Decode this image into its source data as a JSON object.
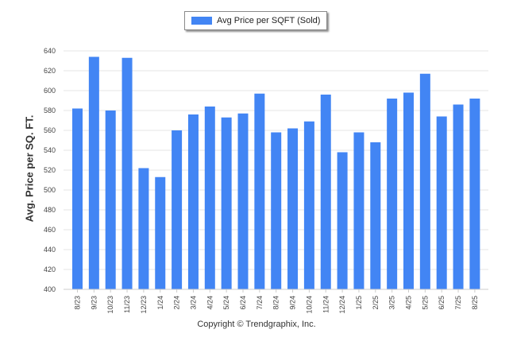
{
  "legend": {
    "label": "Avg Price per SQFT (Sold)",
    "color": "#4285f4"
  },
  "copyright": "Copyright © Trendgraphix, Inc.",
  "chart_data": {
    "type": "bar",
    "title": "",
    "xlabel": "",
    "ylabel": "Avg. Price per SQ. FT.",
    "ylim": [
      400,
      640
    ],
    "yticks": [
      400,
      420,
      440,
      460,
      480,
      500,
      520,
      540,
      560,
      580,
      600,
      620,
      640
    ],
    "grid": true,
    "legend_position": "top-center",
    "bar_color": "#4285f4",
    "categories": [
      "8/23",
      "9/23",
      "10/23",
      "11/23",
      "12/23",
      "1/24",
      "2/24",
      "3/24",
      "4/24",
      "5/24",
      "6/24",
      "7/24",
      "8/24",
      "9/24",
      "10/24",
      "11/24",
      "12/24",
      "1/25",
      "2/25",
      "3/25",
      "4/25",
      "5/25",
      "6/25",
      "7/25",
      "8/25"
    ],
    "series": [
      {
        "name": "Avg Price per SQFT (Sold)",
        "values": [
          582,
          634,
          580,
          633,
          522,
          513,
          560,
          576,
          584,
          573,
          577,
          597,
          558,
          562,
          569,
          596,
          538,
          558,
          548,
          592,
          598,
          617,
          574,
          586,
          592
        ]
      }
    ]
  }
}
